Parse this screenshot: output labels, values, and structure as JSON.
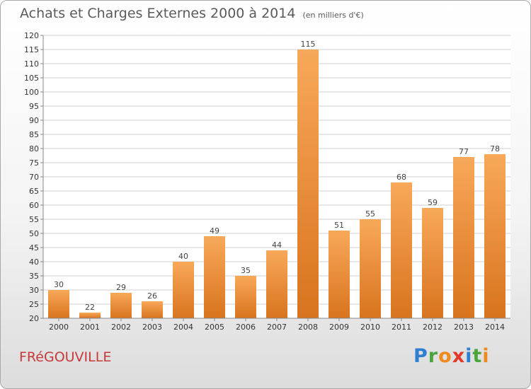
{
  "title": "Achats et Charges Externes 2000 à 2014",
  "subtitle": "(en milliers d'€)",
  "commune": "FRéGOUVILLE",
  "logo": {
    "letters": [
      "P",
      "r",
      "o",
      "x",
      "i",
      "t",
      "i"
    ],
    "colors": [
      "#2f7fd0",
      "#4aa53a",
      "#f08a1c",
      "#e23a2a",
      "#2f7fd0",
      "#4aa53a",
      "#f08a1c"
    ]
  },
  "chart_data": {
    "type": "bar",
    "categories": [
      "2000",
      "2001",
      "2002",
      "2003",
      "2004",
      "2005",
      "2006",
      "2007",
      "2008",
      "2009",
      "2010",
      "2011",
      "2012",
      "2013",
      "2014"
    ],
    "values": [
      30,
      22,
      29,
      26,
      40,
      49,
      35,
      44,
      115,
      51,
      55,
      68,
      59,
      77,
      78
    ],
    "ylim": [
      20,
      120
    ],
    "yticks": [
      20,
      25,
      30,
      35,
      40,
      45,
      50,
      55,
      60,
      65,
      70,
      75,
      80,
      85,
      90,
      95,
      100,
      105,
      110,
      115,
      120
    ],
    "grid": true,
    "bar_color_top": "#f8a85a",
    "bar_color_bottom": "#d8741e"
  }
}
